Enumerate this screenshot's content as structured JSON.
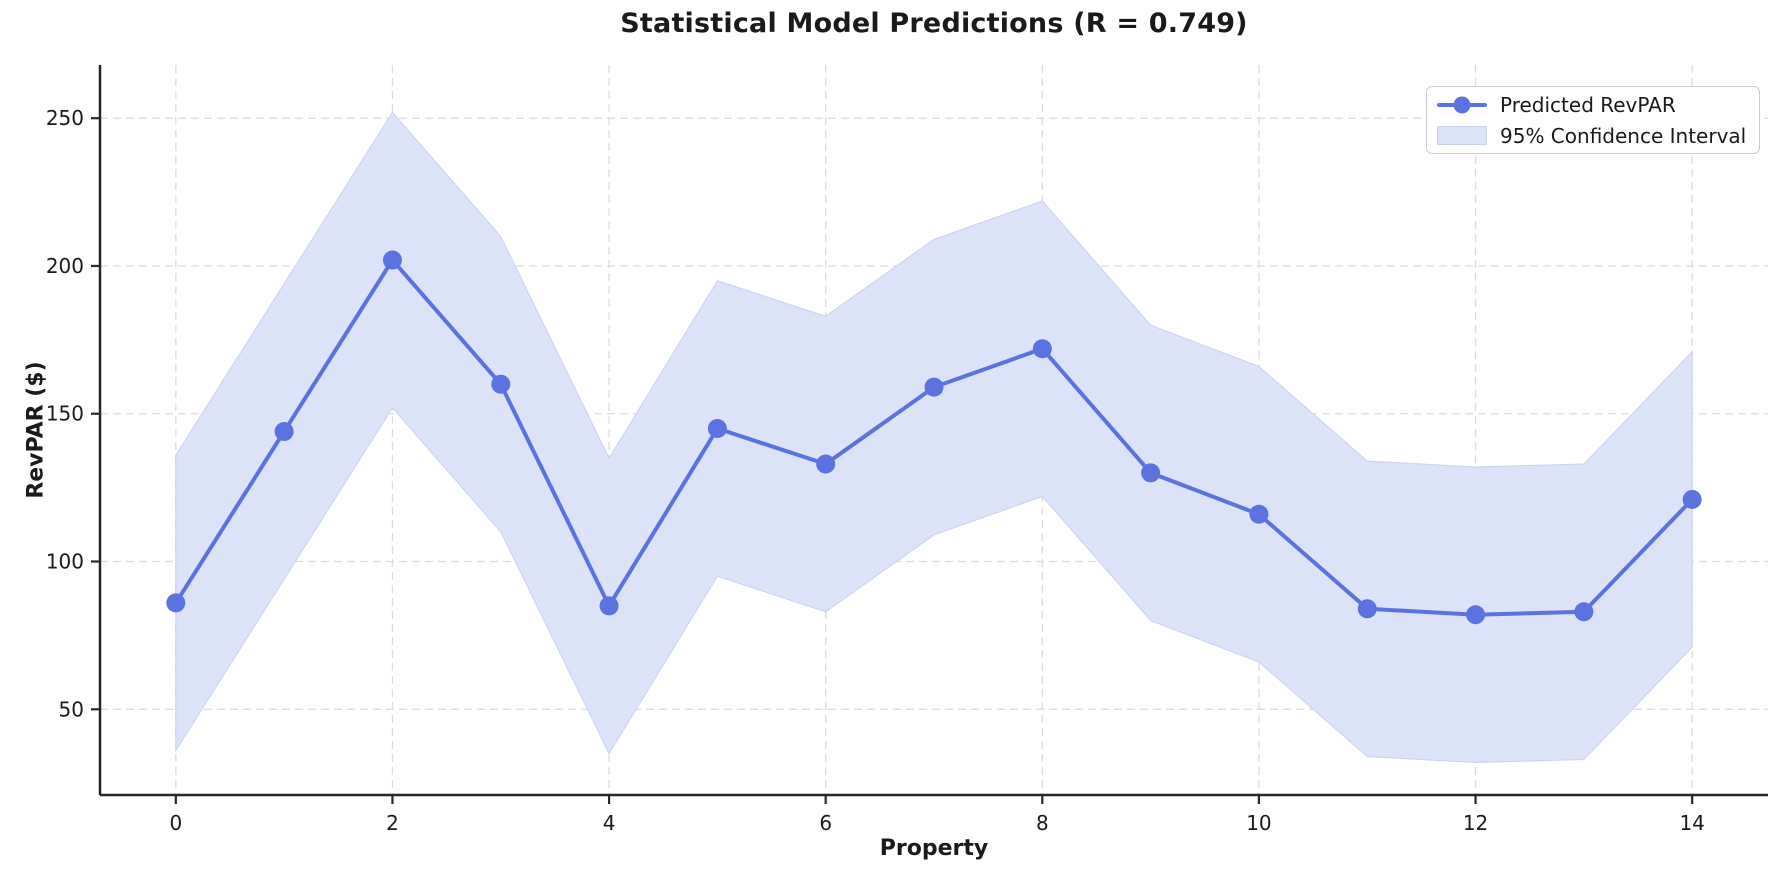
{
  "figure": {
    "title": "Statistical Model Predictions (R = 0.749)",
    "background": "#ffffff"
  },
  "chart_data": {
    "type": "line",
    "title": "Statistical Model Predictions (R = 0.749)",
    "xlabel": "Property",
    "ylabel": "RevPAR ($)",
    "x": [
      0,
      1,
      2,
      3,
      4,
      5,
      6,
      7,
      8,
      9,
      10,
      11,
      12,
      13,
      14
    ],
    "series": [
      {
        "name": "Predicted RevPAR",
        "type": "line",
        "marker": "circle",
        "color": "#5b73e0",
        "values": [
          86,
          144,
          202,
          160,
          85,
          145,
          133,
          159,
          172,
          130,
          116,
          84,
          82,
          83,
          121
        ]
      },
      {
        "name": "95% Confidence Interval",
        "type": "band",
        "fill": "#dce2f8",
        "edge": "#c9d1f3",
        "upper": [
          136,
          194,
          252,
          210,
          135,
          195,
          183,
          209,
          222,
          180,
          166,
          134,
          132,
          133,
          171
        ],
        "lower": [
          36,
          94,
          152,
          110,
          35,
          95,
          83,
          109,
          122,
          80,
          66,
          34,
          32,
          33,
          71
        ]
      }
    ],
    "xticks": [
      0,
      2,
      4,
      6,
      8,
      10,
      12,
      14
    ],
    "yticks": [
      50,
      100,
      150,
      200,
      250
    ],
    "xlim": [
      -0.7,
      14.7
    ],
    "ylim": [
      21,
      268
    ],
    "grid": true,
    "grid_style": "dashed",
    "legend_position": "upper right",
    "colors": {
      "line": "#5b73e0",
      "band_fill": "#dce2f8",
      "band_edge": "#c9d1f3",
      "grid": "#dcdcdc",
      "spine": "#262626",
      "text": "#1a1a1a"
    }
  }
}
